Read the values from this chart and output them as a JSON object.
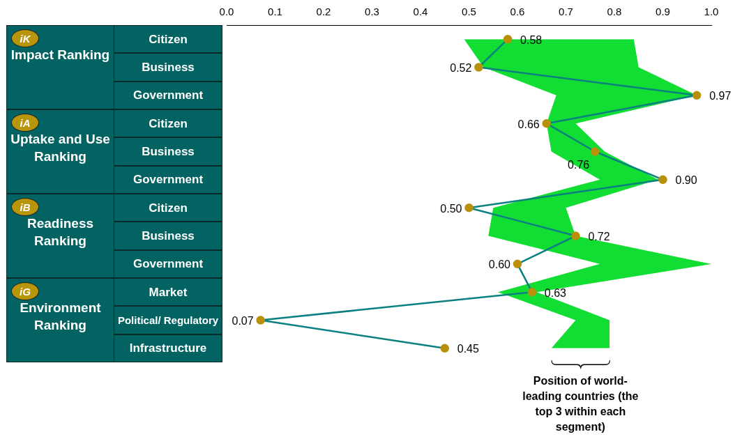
{
  "chart_data": {
    "type": "line",
    "categories": [
      "Citizen",
      "Business",
      "Government",
      "Citizen",
      "Business",
      "Government",
      "Citizen",
      "Business",
      "Government",
      "Market",
      "Political/ Regulatory",
      "Infrastructure"
    ],
    "series": [
      {
        "color": "#0a8080",
        "values": [
          0.58,
          0.52,
          0.97,
          0.66,
          0.76,
          0.9,
          0.5,
          0.72,
          0.6,
          0.63,
          0.07,
          0.45
        ],
        "lower": [
          0.49,
          0.53,
          0.68,
          0.66,
          0.67,
          0.77,
          0.55,
          0.54,
          0.77,
          0.56,
          0.72,
          0.67
        ],
        "upper": [
          0.84,
          0.85,
          0.97,
          0.72,
          0.78,
          0.89,
          0.7,
          0.72,
          1.0,
          0.64,
          0.79,
          0.79
        ]
      }
    ],
    "xlim": [
      0,
      1
    ],
    "xticks": [
      {
        "value": 0,
        "label": "0.0"
      },
      {
        "value": 0.1,
        "label": "0.1"
      },
      {
        "value": 0.2,
        "label": "0.2"
      },
      {
        "value": 0.3,
        "label": "0.3"
      },
      {
        "value": 0.4,
        "label": "0.4"
      },
      {
        "value": 0.5,
        "label": "0.5"
      },
      {
        "value": 0.6,
        "label": "0.6"
      },
      {
        "value": 0.7,
        "label": "0.7"
      },
      {
        "value": 0.8,
        "label": "0.8"
      },
      {
        "value": 0.9,
        "label": "0.9"
      },
      {
        "value": 1,
        "label": "1.0"
      }
    ],
    "value_labels": [
      "0.58",
      "0.52",
      "0.97",
      "0.66",
      "0.76",
      "0.90",
      "0.50",
      "0.72",
      "0.60",
      "0.63",
      "0.07",
      "0.45"
    ],
    "orientation": "horizontal",
    "marker": "circle",
    "line_style": "solid",
    "grid": false,
    "legend": false,
    "annotations": [
      "Impact Ranking",
      "Uptake and Use Ranking",
      "Readiness Ranking",
      "Environment Ranking",
      "iK",
      "iA",
      "iB",
      "iG",
      "Position of world-leading countries (the top 3 within each segment)"
    ]
  }
}
